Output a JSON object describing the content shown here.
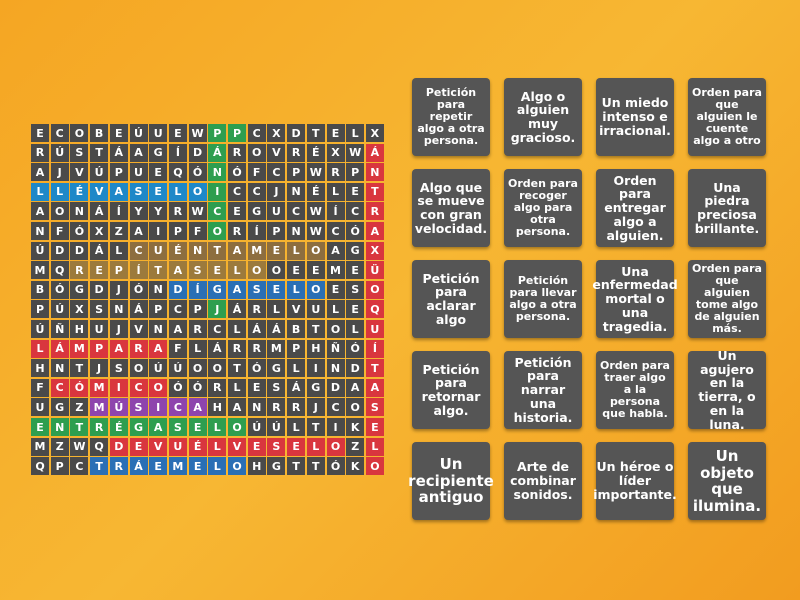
{
  "grid": {
    "rows": [
      [
        "E",
        "C",
        "O",
        "B",
        "E",
        "Ú",
        "U",
        "E",
        "W",
        "P",
        "P",
        "C",
        "X",
        "D",
        "T",
        "E",
        "L",
        "X"
      ],
      [
        "R",
        "Ú",
        "S",
        "T",
        "Á",
        "A",
        "G",
        "Í",
        "D",
        "Á",
        "R",
        "O",
        "V",
        "R",
        "É",
        "X",
        "W",
        "Á"
      ],
      [
        "A",
        "J",
        "V",
        "Ú",
        "P",
        "U",
        "E",
        "Q",
        "Ó",
        "N",
        "Ó",
        "F",
        "C",
        "P",
        "W",
        "R",
        "P",
        "N"
      ],
      [
        "L",
        "L",
        "É",
        "V",
        "A",
        "S",
        "E",
        "L",
        "O",
        "I",
        "C",
        "C",
        "J",
        "N",
        "É",
        "L",
        "E",
        "T"
      ],
      [
        "A",
        "O",
        "N",
        "Á",
        "Í",
        "Y",
        "Y",
        "R",
        "W",
        "C",
        "E",
        "G",
        "U",
        "C",
        "W",
        "Í",
        "C",
        "R"
      ],
      [
        "N",
        "F",
        "Ó",
        "X",
        "Z",
        "A",
        "I",
        "P",
        "F",
        "O",
        "R",
        "Í",
        "P",
        "N",
        "W",
        "C",
        "Ó",
        "A"
      ],
      [
        "Ú",
        "D",
        "D",
        "Á",
        "L",
        "C",
        "U",
        "É",
        "N",
        "T",
        "A",
        "M",
        "E",
        "L",
        "O",
        "A",
        "G",
        "X"
      ],
      [
        "M",
        "Q",
        "R",
        "E",
        "P",
        "Í",
        "T",
        "A",
        "S",
        "E",
        "L",
        "O",
        "O",
        "E",
        "E",
        "M",
        "E",
        "Ü"
      ],
      [
        "B",
        "Ó",
        "G",
        "D",
        "J",
        "Ó",
        "N",
        "D",
        "Í",
        "G",
        "A",
        "S",
        "E",
        "L",
        "O",
        "E",
        "S",
        "O"
      ],
      [
        "P",
        "Ú",
        "X",
        "S",
        "N",
        "Á",
        "P",
        "C",
        "P",
        "J",
        "Á",
        "R",
        "L",
        "V",
        "U",
        "L",
        "E",
        "Q"
      ],
      [
        "Ú",
        "Ñ",
        "H",
        "U",
        "J",
        "V",
        "N",
        "A",
        "R",
        "C",
        "L",
        "Á",
        "Á",
        "B",
        "T",
        "O",
        "L",
        "U"
      ],
      [
        "L",
        "Á",
        "M",
        "P",
        "A",
        "R",
        "A",
        "F",
        "L",
        "Á",
        "R",
        "R",
        "M",
        "P",
        "H",
        "Ñ",
        "Ó",
        "Í"
      ],
      [
        "H",
        "N",
        "T",
        "J",
        "S",
        "O",
        "Ú",
        "Ú",
        "O",
        "O",
        "T",
        "Ó",
        "G",
        "L",
        "I",
        "N",
        "D",
        "T"
      ],
      [
        "F",
        "C",
        "Ó",
        "M",
        "I",
        "C",
        "O",
        "Ó",
        "Ó",
        "R",
        "L",
        "E",
        "S",
        "Á",
        "G",
        "D",
        "A",
        "A"
      ],
      [
        "U",
        "G",
        "Z",
        "M",
        "Ú",
        "S",
        "I",
        "C",
        "A",
        "H",
        "A",
        "N",
        "R",
        "R",
        "J",
        "C",
        "O",
        "S"
      ],
      [
        "E",
        "N",
        "T",
        "R",
        "É",
        "G",
        "A",
        "S",
        "E",
        "L",
        "O",
        "Ú",
        "Ú",
        "L",
        "T",
        "I",
        "K",
        "E"
      ],
      [
        "M",
        "Z",
        "W",
        "Q",
        "D",
        "E",
        "V",
        "U",
        "É",
        "L",
        "V",
        "E",
        "S",
        "E",
        "L",
        "O",
        "Z",
        "L"
      ],
      [
        "Q",
        "P",
        "C",
        "T",
        "R",
        "Á",
        "E",
        "M",
        "E",
        "L",
        "O",
        "H",
        "G",
        "T",
        "T",
        "Ó",
        "K",
        "O"
      ]
    ]
  },
  "cards": [
    "Petición para repetir algo a otra persona.",
    "Algo o alguien muy gracioso.",
    "Un miedo intenso e irracional.",
    "Orden para que alguien le cuente algo a otro",
    "Algo que se mueve con gran velocidad.",
    "Orden para recoger algo para otra persona.",
    "Orden para entregar algo a alguien.",
    "Una piedra preciosa brillante.",
    "Petición para aclarar algo",
    "Petición para llevar algo a otra persona.",
    "Una enfermedad mortal o una tragedia.",
    "Orden para que alguien tome algo de alguien más.",
    "Petición para retornar algo.",
    "Petición para narrar una historia.",
    "Orden para traer algo a la persona que habla.",
    "Un agujero en la tierra, o en la luna.",
    "Un recipiente antiguo",
    "Arte de combinar sonidos.",
    "Un héroe o líder importante.",
    "Un objeto que ilumina."
  ]
}
